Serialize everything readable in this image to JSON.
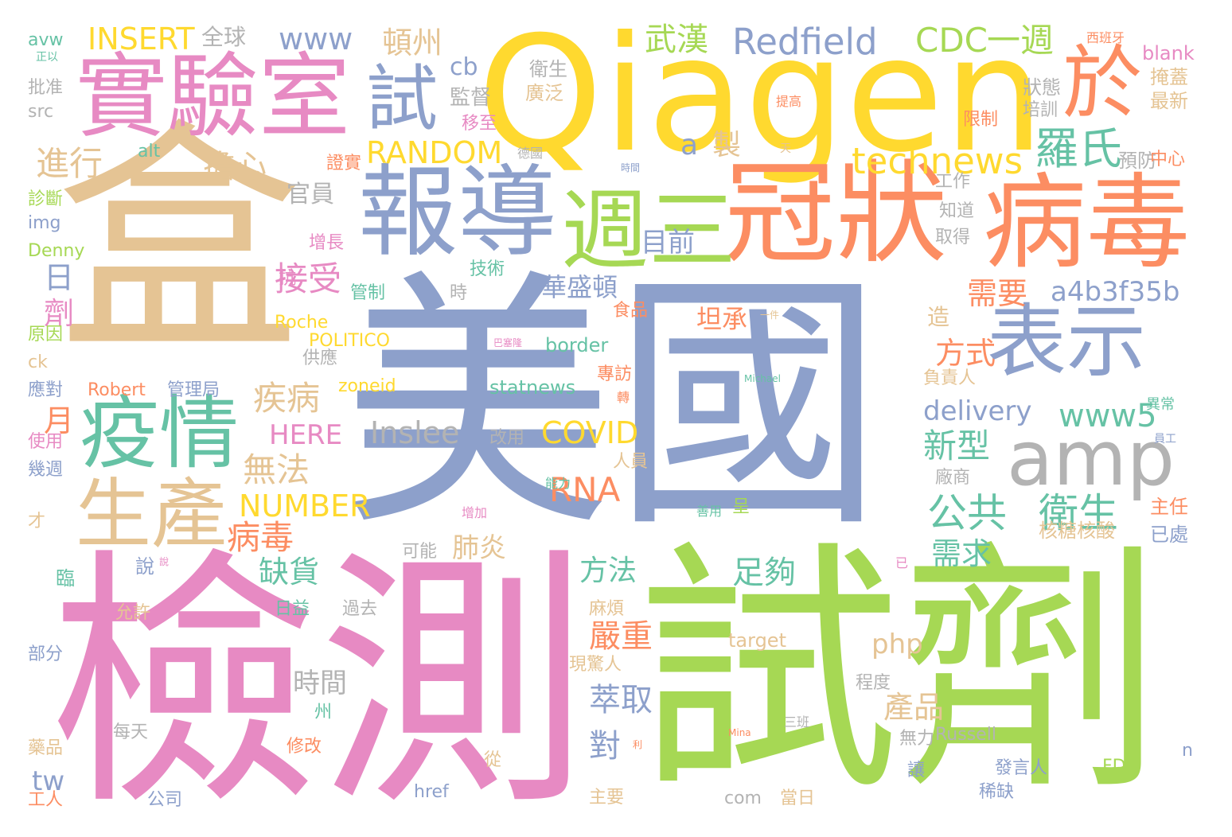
{
  "palette": {
    "pink": "#e78ac3",
    "green": "#a6d854",
    "blue": "#8da0cb",
    "orange": "#fc8d62",
    "teal": "#66c2a5",
    "yellow": "#ffd92f",
    "tan": "#e5c494",
    "gray": "#b3b3b3"
  },
  "words": [
    "美國",
    "檢測",
    "試劑",
    "盒",
    "Qiagen",
    "冠狀",
    "病毒",
    "報導",
    "實驗室",
    "表示",
    "疫情",
    "生產",
    "週三",
    "amp",
    "於",
    "試",
    "羅氏",
    "technews",
    "Redfield",
    "CDC",
    "一週",
    "武漢",
    "www",
    "頓州",
    "INSERT",
    "全球",
    "RANDOM",
    "擔心",
    "接受",
    "進行",
    "日",
    "劑",
    "月",
    "疾病",
    "無法",
    "病毒",
    "NUMBER",
    "HERE",
    "Inslee",
    "COVID",
    "RNA",
    "公共",
    "衛生",
    "新型",
    "www5",
    "a4b3f35b",
    "delivery",
    "需求",
    "需要",
    "方式",
    "足夠",
    "缺貨",
    "嚴重",
    "萃取",
    "產品",
    "對",
    "tw",
    "php",
    "方法",
    "時間",
    "肺炎",
    "華盛頓",
    "坦承",
    "目前",
    "官員",
    "製",
    "a",
    "cb",
    "監督",
    "衛生",
    "廣泛",
    "移至",
    "狀態",
    "培訓",
    "最新",
    "預防",
    "掩蓋",
    "blank",
    "中心",
    "工作",
    "知道",
    "取得",
    "負責人",
    "造",
    "核糖核酸",
    "主任",
    "已處",
    "廠商",
    "異常",
    "員工",
    "statnews",
    "zoneid",
    "border",
    "Robert",
    "管理局",
    "POLITICO",
    "Roche",
    "Denny",
    "img",
    "診斷",
    "alt",
    "src",
    "批准",
    "avw",
    "應對",
    "原因",
    "ck",
    "使用",
    "幾週",
    "才",
    "臨",
    "說",
    "允許",
    "部分",
    "藥品",
    "工人",
    "公司",
    "每天",
    "修改",
    "州",
    "從",
    "href",
    "com",
    "target",
    "現驚人",
    "主要",
    "麻煩",
    "日益",
    "過去",
    "可能",
    "時",
    "技術",
    "管制",
    "增長",
    "抗",
    "供應",
    "專訪",
    "食品",
    "人員",
    "能力",
    "增加",
    "呈",
    "善用",
    "Russell",
    "三班",
    "稀缺",
    "發言人",
    "FDA",
    "n",
    "讓",
    "當日",
    "無力",
    "程度",
    "已",
    "證實",
    "德國",
    "時間",
    "限制",
    "提高",
    "西班牙",
    "正以",
    "改用",
    "Michael",
    "天",
    "一件",
    "Mina",
    "巴塞隆",
    "轉",
    "說",
    "利"
  ]
}
